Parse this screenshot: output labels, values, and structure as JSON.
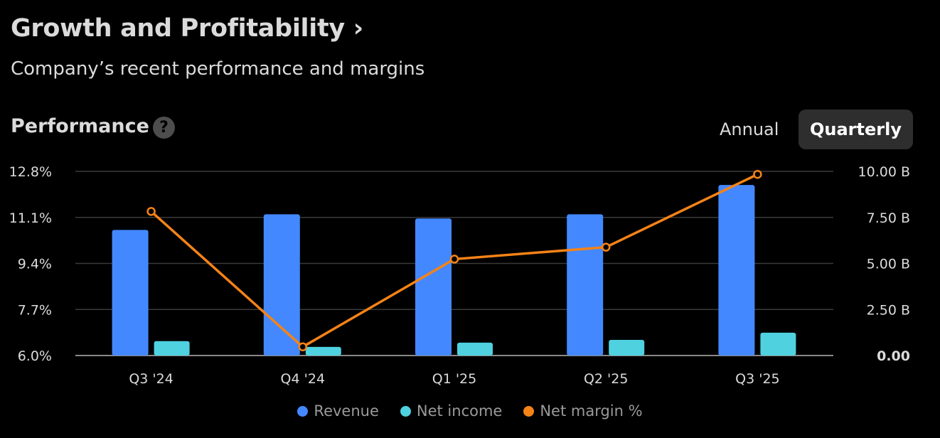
{
  "header": {
    "title": "Growth and Profitability",
    "title_chevron": "›",
    "subtitle": "Company’s recent performance and margins"
  },
  "section": {
    "title": "Performance",
    "help_icon": "?"
  },
  "period_toggle": {
    "options": [
      "Annual",
      "Quarterly"
    ],
    "selected": "Quarterly"
  },
  "colors": {
    "revenue": "#4488ff",
    "net_income": "#4fd1e0",
    "net_margin": "#f58316",
    "grid": "#3a3a3a"
  },
  "chart_data": {
    "type": "bar",
    "categories": [
      "Q3 '24",
      "Q4 '24",
      "Q1 '25",
      "Q2 '25",
      "Q3 '25"
    ],
    "series": [
      {
        "name": "Revenue",
        "axis": "right",
        "type": "bar",
        "values": [
          6.82,
          7.67,
          7.44,
          7.67,
          9.26
        ]
      },
      {
        "name": "Net income",
        "axis": "right",
        "type": "bar",
        "values": [
          0.78,
          0.47,
          0.7,
          0.85,
          1.24
        ]
      },
      {
        "name": "Net margin %",
        "axis": "left",
        "type": "line",
        "values": [
          11.32,
          6.32,
          9.56,
          10.0,
          12.69
        ]
      }
    ],
    "left_axis": {
      "ticks": [
        "12.8%",
        "11.1%",
        "9.4%",
        "7.7%",
        "6.0%"
      ],
      "range": [
        6.0,
        12.8
      ]
    },
    "right_axis": {
      "ticks": [
        "10.00 B",
        "7.50 B",
        "5.00 B",
        "2.50 B",
        "0.00"
      ],
      "range": [
        0,
        10
      ]
    },
    "legend": [
      "Revenue",
      "Net income",
      "Net margin %"
    ],
    "legend_position": "bottom",
    "grid": true
  }
}
